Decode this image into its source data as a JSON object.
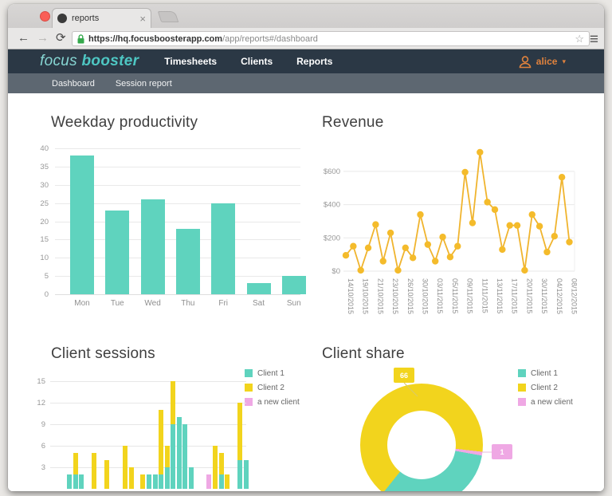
{
  "browser": {
    "tab": {
      "title": "reports",
      "close_glyph": "×"
    },
    "url": {
      "secure_part": "https://hq.focusboosterapp.com",
      "path_part": "/app/reports#/dashboard"
    },
    "icons": {
      "back": "←",
      "forward": "→",
      "reload": "⟳",
      "star": "☆",
      "menu": "≡"
    }
  },
  "app": {
    "logo": {
      "focus": "focus",
      "booster": "booster"
    },
    "nav": [
      "Timesheets",
      "Clients",
      "Reports"
    ],
    "user": {
      "name": "alice",
      "caret": "▾"
    },
    "subnav": [
      "Dashboard",
      "Session report"
    ]
  },
  "colors": {
    "teal": "#5fd3be",
    "yellow": "#f2d41d",
    "pink": "#efa8e4",
    "amber": "#f0b42e"
  },
  "chart_data": [
    {
      "type": "bar",
      "title": "Weekday productivity",
      "categories": [
        "Mon",
        "Tue",
        "Wed",
        "Thu",
        "Fri",
        "Sat",
        "Sun"
      ],
      "values": [
        38,
        23,
        26,
        18,
        25,
        3,
        5
      ],
      "yticks": [
        0,
        5,
        10,
        15,
        20,
        25,
        30,
        35,
        40
      ],
      "ylim": [
        0,
        40
      ],
      "color": "#5fd3be"
    },
    {
      "type": "line",
      "title": "Revenue",
      "values": [
        95,
        150,
        5,
        140,
        280,
        60,
        230,
        5,
        140,
        80,
        340,
        160,
        60,
        205,
        85,
        150,
        595,
        290,
        715,
        415,
        370,
        130,
        275,
        275,
        5,
        340,
        270,
        115,
        210,
        565,
        175
      ],
      "x_tick_labels": [
        "14/10/2015",
        "19/10/2015",
        "21/10/2015",
        "23/10/2015",
        "26/10/2015",
        "30/10/2015",
        "03/11/2015",
        "05/11/2015",
        "09/11/2015",
        "11/11/2015",
        "13/11/2015",
        "17/11/2015",
        "20/11/2015",
        "30/11/2015",
        "04/12/2015",
        "08/12/2015"
      ],
      "label_every": 2,
      "yticks": [
        {
          "label": "$0",
          "value": 0
        },
        {
          "label": "$200",
          "value": 200
        },
        {
          "label": "$400",
          "value": 400
        },
        {
          "label": "$600",
          "value": 600
        }
      ],
      "ylim": [
        0,
        750
      ],
      "color": "#f0b42e"
    },
    {
      "type": "stacked-bar",
      "title": "Client sessions",
      "yticks": [
        3,
        6,
        9,
        12,
        15
      ],
      "ylim": [
        0,
        16.5
      ],
      "legend": [
        {
          "key": "c1",
          "label": "Client 1",
          "color": "#5fd3be"
        },
        {
          "key": "c2",
          "label": "Client 2",
          "color": "#f2d41d"
        },
        {
          "key": "nc",
          "label": "a new client",
          "color": "#efa8e4"
        }
      ],
      "bars": [
        {
          "x": 44,
          "segments": [
            {
              "key": "c1",
              "value": 2
            }
          ]
        },
        {
          "x": 52,
          "segments": [
            {
              "key": "c1",
              "value": 2
            },
            {
              "key": "c2",
              "value": 3
            }
          ]
        },
        {
          "x": 59,
          "segments": [
            {
              "key": "c1",
              "value": 2
            }
          ]
        },
        {
          "x": 75,
          "segments": [
            {
              "key": "c2",
              "value": 5
            }
          ]
        },
        {
          "x": 91,
          "segments": [
            {
              "key": "c2",
              "value": 4
            }
          ]
        },
        {
          "x": 114,
          "segments": [
            {
              "key": "c2",
              "value": 6
            }
          ]
        },
        {
          "x": 122,
          "segments": [
            {
              "key": "c2",
              "value": 3
            }
          ]
        },
        {
          "x": 136,
          "segments": [
            {
              "key": "c2",
              "value": 2
            }
          ]
        },
        {
          "x": 144,
          "segments": [
            {
              "key": "c1",
              "value": 2
            }
          ]
        },
        {
          "x": 152,
          "segments": [
            {
              "key": "c1",
              "value": 2
            }
          ]
        },
        {
          "x": 159,
          "segments": [
            {
              "key": "c1",
              "value": 2
            },
            {
              "key": "c2",
              "value": 9
            }
          ]
        },
        {
          "x": 167,
          "segments": [
            {
              "key": "c1",
              "value": 3
            },
            {
              "key": "c2",
              "value": 3
            }
          ]
        },
        {
          "x": 174,
          "segments": [
            {
              "key": "c1",
              "value": 9
            },
            {
              "key": "c2",
              "value": 6
            }
          ]
        },
        {
          "x": 182,
          "segments": [
            {
              "key": "c1",
              "value": 10
            }
          ]
        },
        {
          "x": 189,
          "segments": [
            {
              "key": "c1",
              "value": 9
            }
          ]
        },
        {
          "x": 197,
          "segments": [
            {
              "key": "c1",
              "value": 3
            }
          ]
        },
        {
          "x": 219,
          "segments": [
            {
              "key": "nc",
              "value": 2
            }
          ]
        },
        {
          "x": 227,
          "segments": [
            {
              "key": "c2",
              "value": 6
            }
          ]
        },
        {
          "x": 235,
          "segments": [
            {
              "key": "c1",
              "value": 2
            },
            {
              "key": "c2",
              "value": 3
            }
          ]
        },
        {
          "x": 242,
          "segments": [
            {
              "key": "c2",
              "value": 2
            }
          ]
        },
        {
          "x": 258,
          "segments": [
            {
              "key": "c1",
              "value": 4
            },
            {
              "key": "c2",
              "value": 8
            }
          ]
        },
        {
          "x": 266,
          "segments": [
            {
              "key": "c1",
              "value": 4
            }
          ]
        }
      ]
    },
    {
      "type": "donut",
      "title": "Client share",
      "start_angle": 96.4,
      "slices": [
        {
          "label": "a new client",
          "value": 1,
          "color": "#efa8e4"
        },
        {
          "label": "Client 1",
          "value": 33,
          "color": "#5fd3be"
        },
        {
          "label": "Client 2",
          "value": 66,
          "color": "#f2d41d"
        }
      ],
      "callouts": [
        {
          "text": "66",
          "color": "#f2d41d"
        },
        {
          "text": "1",
          "color": "#efa8e4"
        }
      ],
      "legend": [
        {
          "label": "Client 1",
          "color": "#5fd3be"
        },
        {
          "label": "Client 2",
          "color": "#f2d41d"
        },
        {
          "label": "a new client",
          "color": "#efa8e4"
        }
      ]
    }
  ]
}
